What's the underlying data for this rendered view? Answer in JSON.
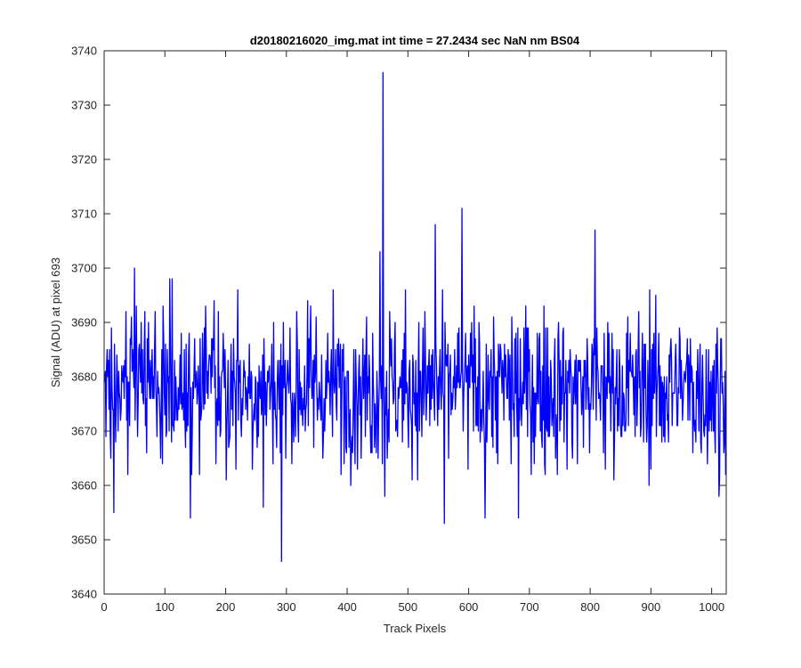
{
  "chart_data": {
    "type": "line",
    "title": "d20180216020_img.mat int time = 27.2434 sec  NaN nm BS04",
    "xlabel": "Track Pixels",
    "ylabel": "Signal (ADU) at pixel 693",
    "xlim": [
      0,
      1024
    ],
    "ylim": [
      3640,
      3740
    ],
    "xticks": [
      0,
      100,
      200,
      300,
      400,
      500,
      600,
      700,
      800,
      900,
      1000
    ],
    "yticks": [
      3640,
      3650,
      3660,
      3670,
      3680,
      3690,
      3700,
      3710,
      3720,
      3730,
      3740
    ],
    "grid": false,
    "legend": "none",
    "line_color": "#0000ff",
    "series": [
      {
        "baseline": 3678,
        "x_range": [
          1,
          1024
        ],
        "notable_points": [
          {
            "x": 16,
            "y": 3655
          },
          {
            "x": 50,
            "y": 3700
          },
          {
            "x": 108,
            "y": 3698
          },
          {
            "x": 112,
            "y": 3698
          },
          {
            "x": 142,
            "y": 3654
          },
          {
            "x": 220,
            "y": 3696
          },
          {
            "x": 262,
            "y": 3656
          },
          {
            "x": 292,
            "y": 3646
          },
          {
            "x": 454,
            "y": 3703
          },
          {
            "x": 459,
            "y": 3736
          },
          {
            "x": 462,
            "y": 3658
          },
          {
            "x": 545,
            "y": 3708
          },
          {
            "x": 560,
            "y": 3653
          },
          {
            "x": 589,
            "y": 3711
          },
          {
            "x": 627,
            "y": 3654
          },
          {
            "x": 682,
            "y": 3654
          },
          {
            "x": 808,
            "y": 3707
          },
          {
            "x": 1012,
            "y": 3658
          }
        ]
      }
    ]
  }
}
